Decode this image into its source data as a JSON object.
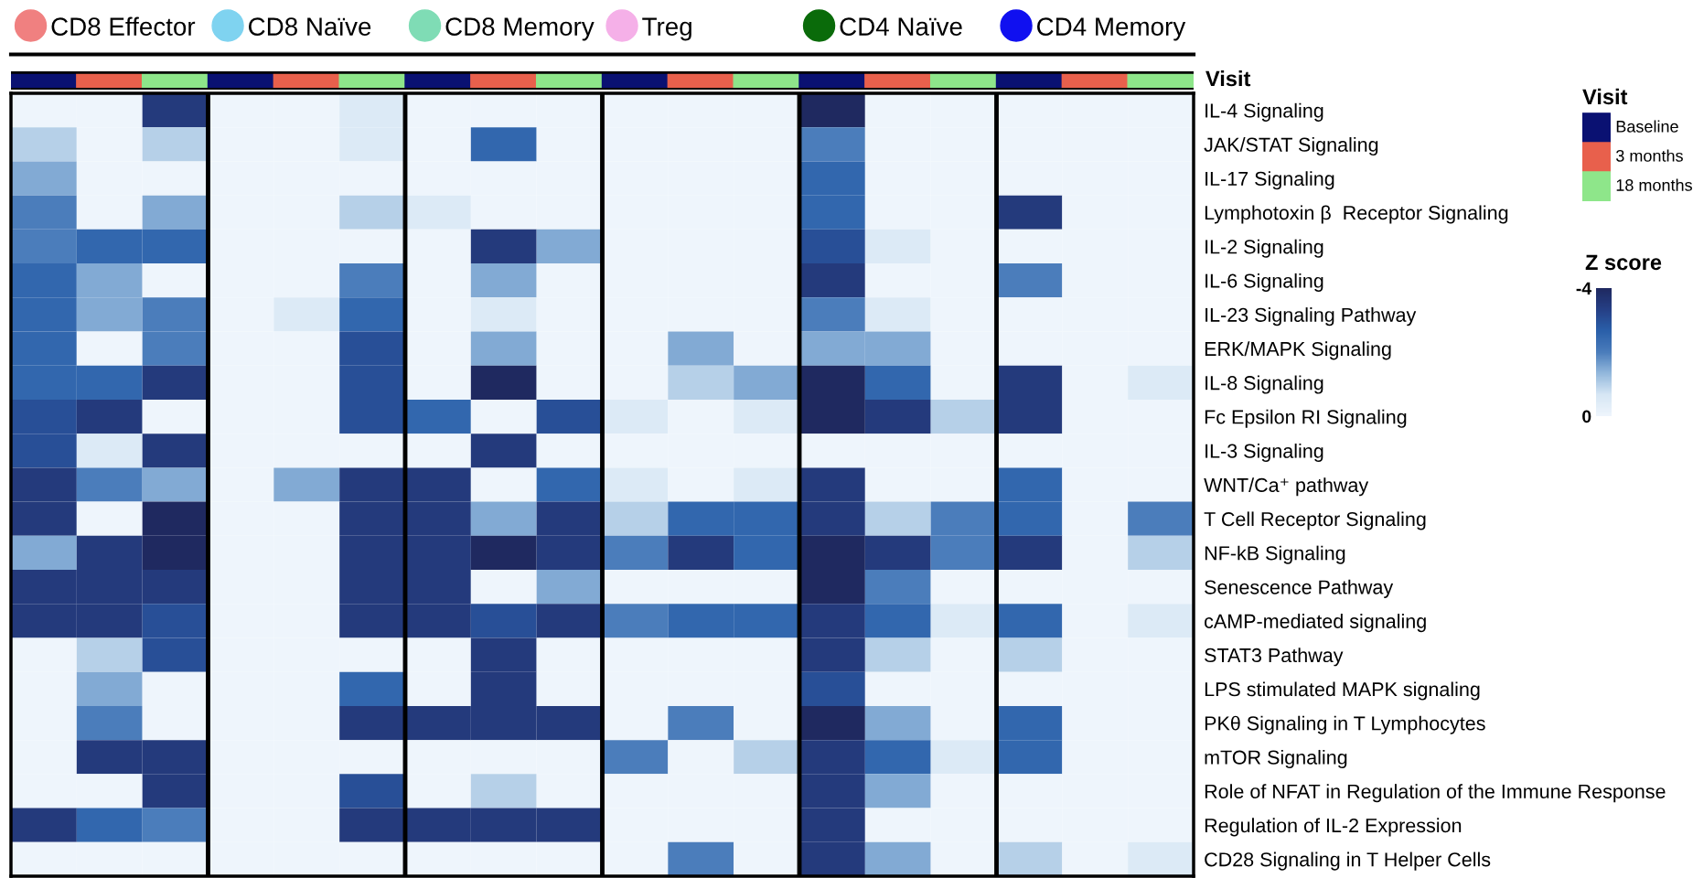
{
  "chart_data": {
    "type": "heatmap",
    "categories": [
      null,
      null,
      null,
      null,
      null,
      null,
      null,
      null,
      null,
      null,
      null,
      null,
      null,
      null,
      null,
      null,
      null,
      null
    ],
    "y_categories": [
      "IL-4 Signaling",
      "JAK/STAT Signaling",
      "IL-17 Signaling",
      "Lymphotoxin β  Receptor Signaling",
      "IL-2 Signaling",
      "IL-6 Signaling",
      "IL-23 Signaling Pathway",
      "ERK/MAPK Signaling",
      "IL-8 Signaling",
      "Fc Epsilon RI Signaling",
      "IL-3 Signaling",
      "WNT/Ca⁺ pathway",
      "T Cell Receptor Signaling",
      "NF-kB Signaling",
      "Senescence Pathway",
      "cAMP-mediated signaling",
      "STAT3 Pathway",
      "LPS stimulated MAPK signaling",
      "PKθ Signaling in T Lymphocytes",
      "mTOR Signaling",
      "Role of NFAT in Regulation of the Immune Response",
      "Regulation of IL-2 Expression",
      "CD28 Signaling in T Helper Cells"
    ],
    "cells": [
      [
        0,
        0,
        -3.5,
        0,
        0,
        -0.5,
        0,
        0,
        0,
        0,
        0,
        0,
        -4,
        0,
        0,
        0,
        0,
        0
      ],
      [
        -1,
        0,
        -1,
        0,
        0,
        -0.5,
        0,
        -2.5,
        0,
        0,
        0,
        0,
        -2,
        0,
        0,
        0,
        0,
        0
      ],
      [
        -1.5,
        0,
        0,
        0,
        0,
        0,
        0,
        0,
        0,
        0,
        0,
        0,
        -2.5,
        0,
        0,
        0,
        0,
        0
      ],
      [
        -2,
        0,
        -1.5,
        0,
        0,
        -1,
        -0.5,
        0,
        0,
        0,
        0,
        0,
        -2.5,
        0,
        0,
        -3.5,
        0,
        0
      ],
      [
        -2,
        -2.5,
        -2.5,
        0,
        0,
        0,
        0,
        -3.5,
        -1.5,
        0,
        0,
        0,
        -3,
        -0.5,
        0,
        0,
        0,
        0
      ],
      [
        -2.5,
        -1.5,
        0,
        0,
        0,
        -2,
        0,
        -1.5,
        0,
        0,
        0,
        0,
        -3.5,
        0,
        0,
        -2,
        0,
        0
      ],
      [
        -2.5,
        -1.5,
        -2,
        0,
        -0.5,
        -2.5,
        0,
        -0.5,
        0,
        0,
        0,
        0,
        -2,
        -0.5,
        0,
        0,
        0,
        0
      ],
      [
        -2.5,
        0,
        -2,
        0,
        0,
        -3,
        0,
        -1.5,
        0,
        0,
        -1.5,
        0,
        -1.5,
        -1.5,
        0,
        0,
        0,
        0
      ],
      [
        -2.5,
        -2.5,
        -3.5,
        0,
        0,
        -3,
        0,
        -4,
        0,
        0,
        -1,
        -1.5,
        -4,
        -2.5,
        0,
        -3.5,
        0,
        -0.5
      ],
      [
        -3,
        -3.5,
        0,
        0,
        0,
        -3,
        -2.5,
        0,
        -3,
        -0.5,
        0,
        -0.5,
        -4,
        -3.5,
        -1,
        -3.5,
        0,
        0
      ],
      [
        -3,
        -0.5,
        -3.5,
        0,
        0,
        0,
        0,
        -3.5,
        0,
        0,
        0,
        0,
        0,
        0,
        0,
        0,
        0,
        0
      ],
      [
        -3.5,
        -2,
        -1.5,
        0,
        -1.5,
        -3.5,
        -3.5,
        0,
        -2.5,
        -0.5,
        0,
        -0.5,
        -3.5,
        0,
        0,
        -2.5,
        0,
        0
      ],
      [
        -3.5,
        0,
        -4,
        0,
        0,
        -3.5,
        -3.5,
        -1.5,
        -3.5,
        -1,
        -2.5,
        -2.5,
        -3.5,
        -1,
        -2,
        -2.5,
        0,
        -2
      ],
      [
        -1.5,
        -3.5,
        -4,
        0,
        0,
        -3.5,
        -3.5,
        -4,
        -3.5,
        -2,
        -3.5,
        -2.5,
        -4,
        -3.5,
        -2,
        -3.5,
        0,
        -1
      ],
      [
        -3.5,
        -3.5,
        -3.5,
        0,
        0,
        -3.5,
        -3.5,
        0,
        -1.5,
        0,
        0,
        0,
        -4,
        -2,
        0,
        0,
        0,
        0
      ],
      [
        -3.5,
        -3.5,
        -3,
        0,
        0,
        -3.5,
        -3.5,
        -3,
        -3.5,
        -2,
        -2.5,
        -2.5,
        -3.5,
        -2.5,
        -0.5,
        -2.5,
        0,
        -0.5
      ],
      [
        0,
        -1,
        -3,
        0,
        0,
        0,
        0,
        -3.5,
        0,
        0,
        0,
        0,
        -3.5,
        -1,
        0,
        -1,
        0,
        0
      ],
      [
        0,
        -1.5,
        0,
        0,
        0,
        -2.5,
        0,
        -3.5,
        0,
        0,
        0,
        0,
        -3,
        0,
        0,
        0,
        0,
        0
      ],
      [
        0,
        -2,
        0,
        0,
        0,
        -3.5,
        -3.5,
        -3.5,
        -3.5,
        0,
        -2,
        0,
        -4,
        -1.5,
        0,
        -2.5,
        0,
        0
      ],
      [
        0,
        -3.5,
        -3.5,
        0,
        0,
        0,
        0,
        0,
        0,
        -2,
        0,
        -1,
        -3.5,
        -2.5,
        -0.5,
        -2.5,
        0,
        0
      ],
      [
        0,
        0,
        -3.5,
        0,
        0,
        -3,
        0,
        -1,
        0,
        0,
        0,
        0,
        -3.5,
        -1.5,
        0,
        0,
        0,
        0
      ],
      [
        -3.5,
        -2.5,
        -2,
        0,
        0,
        -3.5,
        -3.5,
        -3.5,
        -3.5,
        0,
        0,
        0,
        -3.5,
        0,
        0,
        0,
        0,
        0
      ],
      [
        0,
        0,
        0,
        0,
        0,
        0,
        0,
        0,
        0,
        0,
        -2,
        0,
        -3.5,
        -1.5,
        0,
        -1,
        0,
        -0.5
      ]
    ],
    "clim": [
      -4,
      0
    ],
    "cticks": [
      -4,
      0
    ],
    "clabel": "Z score",
    "legend_title": "Visit",
    "annotations": [
      "CD8 Effector",
      "CD8 Naïve",
      "CD8 Memory",
      "Treg",
      "CD4 Naïve",
      "CD4 Memory",
      "Baseline",
      "3 months",
      "18 months"
    ]
  }
}
